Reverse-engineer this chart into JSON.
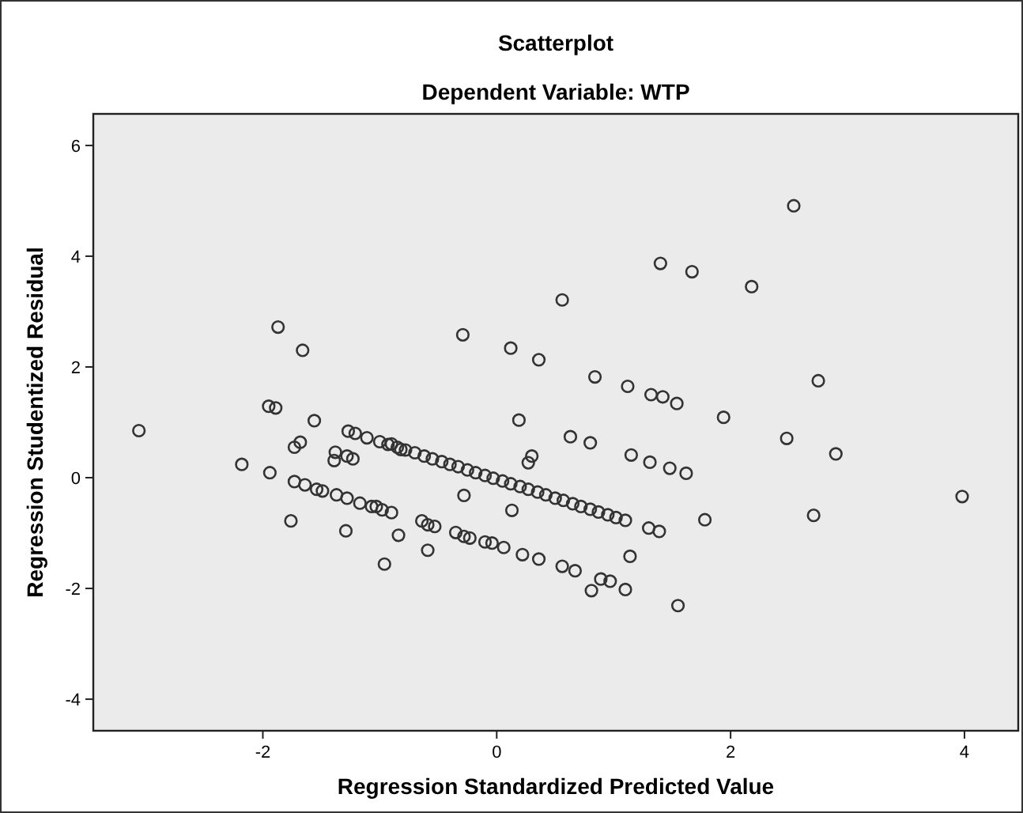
{
  "chart_data": {
    "type": "scatter",
    "title": "Scatterplot",
    "subtitle": "Dependent Variable: WTP",
    "xlabel": "Regression Standardized Predicted Value",
    "ylabel": "Regression Studentized Residual",
    "xlim": [
      -3.45,
      4.46
    ],
    "ylim": [
      -4.57,
      6.57
    ],
    "xticks": [
      -2,
      0,
      2,
      4
    ],
    "yticks": [
      -4,
      -2,
      0,
      2,
      4,
      6
    ],
    "grid": false,
    "marker": "circle",
    "series": [
      {
        "color": "#333333",
        "x": [
          -3.06,
          -1.87,
          -1.66,
          -1.95,
          -1.89,
          -1.56,
          -1.27,
          -1.21,
          -1.11,
          -0.9,
          -0.82,
          -1.73,
          -1.68,
          -1.38,
          -1.39,
          -1.28,
          -1.23,
          -2.18,
          -1.94,
          -1.73,
          -1.64,
          -1.54,
          -1.49,
          -1.37,
          -1.28,
          -1.17,
          -1.07,
          -0.98,
          -0.9,
          -1.76,
          -1.29,
          -0.84,
          -0.96,
          -1.0,
          -0.93,
          -0.85,
          -0.78,
          -0.7,
          -0.62,
          -0.55,
          -0.47,
          -0.4,
          -0.33,
          -0.25,
          -0.18,
          -0.1,
          -0.03,
          0.05,
          0.12,
          0.2,
          0.27,
          0.35,
          0.42,
          0.5,
          0.57,
          0.65,
          0.72,
          0.8,
          0.87,
          0.95,
          1.02,
          1.1,
          -0.29,
          0.12,
          0.36,
          0.56,
          0.84,
          1.12,
          1.32,
          1.42,
          1.54,
          1.4,
          1.67,
          0.19,
          0.63,
          0.8,
          1.15,
          1.31,
          1.48,
          1.62,
          0.3,
          0.27,
          -0.28,
          0.13,
          1.3,
          1.39,
          -1.03,
          -0.64,
          -0.59,
          -0.53,
          -0.59,
          -0.35,
          -0.28,
          -0.23,
          -0.1,
          -0.04,
          0.06,
          0.22,
          0.36,
          0.56,
          0.67,
          1.14,
          0.81,
          0.89,
          0.97,
          1.1,
          1.55,
          2.54,
          2.18,
          2.75,
          1.94,
          2.48,
          2.9,
          3.98,
          1.78,
          2.71
        ],
        "values": [
          0.85,
          2.72,
          2.3,
          1.29,
          1.26,
          1.03,
          0.84,
          0.8,
          0.72,
          0.61,
          0.51,
          0.55,
          0.64,
          0.46,
          0.31,
          0.39,
          0.34,
          0.24,
          0.09,
          -0.07,
          -0.13,
          -0.21,
          -0.24,
          -0.31,
          -0.37,
          -0.46,
          -0.52,
          -0.58,
          -0.63,
          -0.78,
          -0.96,
          -1.04,
          -1.56,
          0.65,
          0.6,
          0.55,
          0.5,
          0.45,
          0.39,
          0.34,
          0.29,
          0.24,
          0.2,
          0.14,
          0.09,
          0.04,
          -0.01,
          -0.06,
          -0.11,
          -0.16,
          -0.21,
          -0.26,
          -0.31,
          -0.37,
          -0.41,
          -0.47,
          -0.52,
          -0.57,
          -0.62,
          -0.67,
          -0.72,
          -0.77,
          2.58,
          2.34,
          2.13,
          3.21,
          1.82,
          1.65,
          1.5,
          1.46,
          1.34,
          3.87,
          3.72,
          1.04,
          0.74,
          0.63,
          0.41,
          0.28,
          0.17,
          0.08,
          0.39,
          0.27,
          -0.32,
          -0.59,
          -0.91,
          -0.97,
          -0.52,
          -0.78,
          -0.85,
          -0.88,
          -1.31,
          -0.99,
          -1.06,
          -1.09,
          -1.16,
          -1.18,
          -1.26,
          -1.39,
          -1.47,
          -1.6,
          -1.68,
          -1.42,
          -2.04,
          -1.83,
          -1.87,
          -2.02,
          -2.31,
          4.91,
          3.45,
          1.75,
          1.09,
          0.71,
          0.43,
          -0.34,
          -0.76,
          -0.68
        ]
      }
    ]
  }
}
